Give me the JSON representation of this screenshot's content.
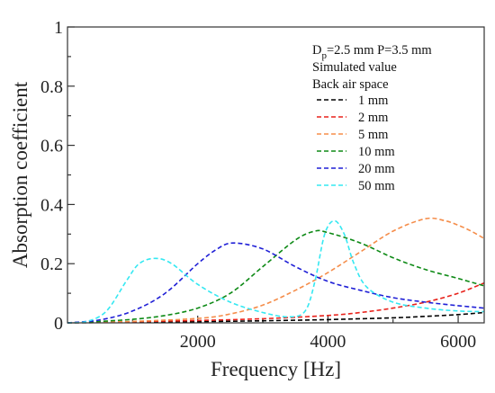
{
  "chart_data": {
    "type": "line",
    "title": "",
    "xlabel": "Frequency [Hz]",
    "ylabel": "Absorption coefficient",
    "xlim": [
      0,
      6400
    ],
    "ylim": [
      0,
      1
    ],
    "xticks": [
      2000,
      4000,
      6000
    ],
    "yticks": [
      0,
      0.2,
      0.4,
      0.6,
      0.8,
      1
    ],
    "ytick_labels": [
      "0",
      "0.2",
      "0.4",
      "0.6",
      "0.8",
      "1"
    ],
    "grid": false,
    "legend_position": "top-right",
    "legend_header": {
      "line1_main": "D",
      "line1_sub": "p",
      "line1_rest": "=2.5 mm P=3.5 mm",
      "line2": "Simulated value",
      "line3": "Back air space"
    },
    "series": [
      {
        "name": "1 mm",
        "color": "#000000",
        "x": [
          0,
          500,
          1000,
          2000,
          3000,
          4000,
          5000,
          5500,
          6000,
          6400
        ],
        "y": [
          0,
          0.001,
          0.002,
          0.004,
          0.007,
          0.011,
          0.017,
          0.022,
          0.028,
          0.035
        ]
      },
      {
        "name": "2 mm",
        "color": "#e8221b",
        "x": [
          0,
          1000,
          2000,
          3000,
          4000,
          4500,
          5000,
          5500,
          6000,
          6400
        ],
        "y": [
          0,
          0.004,
          0.008,
          0.014,
          0.025,
          0.035,
          0.05,
          0.07,
          0.1,
          0.135
        ]
      },
      {
        "name": "5 mm",
        "color": "#f58d4a",
        "x": [
          0,
          1000,
          2000,
          2500,
          3000,
          3500,
          4000,
          4500,
          5000,
          5500,
          5800,
          6000,
          6200,
          6400
        ],
        "y": [
          0,
          0.005,
          0.015,
          0.03,
          0.06,
          0.11,
          0.17,
          0.24,
          0.31,
          0.352,
          0.345,
          0.33,
          0.31,
          0.285
        ]
      },
      {
        "name": "10 mm",
        "color": "#0e8a16",
        "x": [
          0,
          500,
          1000,
          1500,
          2000,
          2500,
          3000,
          3500,
          3800,
          4000,
          4500,
          5000,
          5500,
          6000,
          6400
        ],
        "y": [
          0,
          0.005,
          0.012,
          0.025,
          0.05,
          0.1,
          0.19,
          0.28,
          0.31,
          0.305,
          0.27,
          0.22,
          0.18,
          0.15,
          0.125
        ]
      },
      {
        "name": "20 mm",
        "color": "#1f1fd6",
        "x": [
          0,
          500,
          1000,
          1500,
          2000,
          2300,
          2550,
          3000,
          3500,
          4000,
          4500,
          5000,
          5500,
          6000,
          6400
        ],
        "y": [
          0,
          0.01,
          0.04,
          0.1,
          0.2,
          0.25,
          0.27,
          0.25,
          0.19,
          0.14,
          0.11,
          0.085,
          0.07,
          0.058,
          0.05
        ]
      },
      {
        "name": "50 mm",
        "color": "#35e8f2",
        "x": [
          0,
          300,
          600,
          900,
          1100,
          1350,
          1600,
          2000,
          2500,
          3000,
          3400,
          3650,
          3800,
          3950,
          4100,
          4250,
          4400,
          4600,
          5000,
          5500,
          6000,
          6400
        ],
        "y": [
          0,
          0.005,
          0.04,
          0.14,
          0.2,
          0.218,
          0.2,
          0.13,
          0.07,
          0.035,
          0.02,
          0.04,
          0.14,
          0.3,
          0.345,
          0.3,
          0.2,
          0.12,
          0.07,
          0.05,
          0.04,
          0.038
        ]
      }
    ]
  }
}
